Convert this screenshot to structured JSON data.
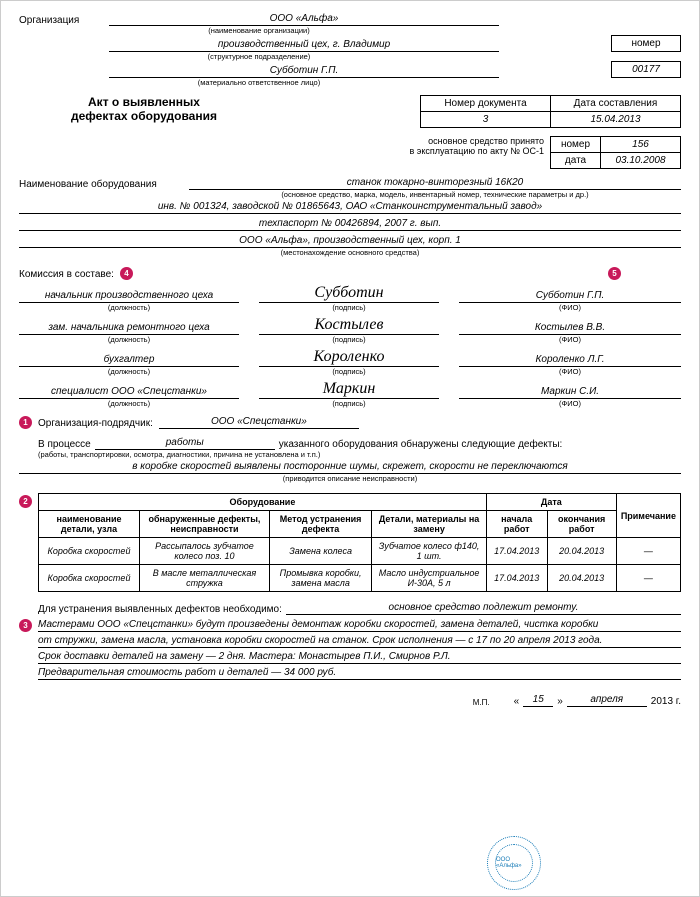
{
  "header": {
    "org_label": "Организация",
    "org_value": "ООО «Альфа»",
    "org_cap": "(наименование организации)",
    "subdiv_value": "производственный цех, г. Владимир",
    "subdiv_cap": "(структурное подразделение)",
    "resp_value": "Субботин Г.П.",
    "resp_cap": "(материально ответственное лицо)",
    "num_label": "номер",
    "num_value": "00177"
  },
  "title": {
    "line1": "Акт о выявленных",
    "line2": "дефектах оборудования"
  },
  "docbox": {
    "docnum_label": "Номер документа",
    "docnum_value": "3",
    "date_label": "Дата составления",
    "date_value": "15.04.2013"
  },
  "accept": {
    "text1": "основное средство принято",
    "text2": "в эксплуатацию по акту № ОС-1",
    "num_label": "номер",
    "num_value": "156",
    "date_label": "дата",
    "date_value": "03.10.2008"
  },
  "equip": {
    "label": "Наименование оборудования",
    "value": "станок токарно-винторезный 16К20",
    "cap": "(основное средство, марка, модель, инвентарный номер, технические параметры и др.)",
    "line2": "инв. № 001324, заводской № 01865643, ОАО «Станкоинструментальный завод»",
    "line3": "техпаспорт № 00426894, 2007 г. вып.",
    "line4": "ООО «Альфа», производственный цех, корп. 1",
    "line4_cap": "(местонахождение основного средства)"
  },
  "commission": {
    "label": "Комиссия в составе:",
    "rows": [
      {
        "pos": "начальник производственного цеха",
        "sign": "Субботин",
        "fio": "Субботин Г.П."
      },
      {
        "pos": "зам. начальника ремонтного цеха",
        "sign": "Костылев",
        "fio": "Костылев В.В."
      },
      {
        "pos": "бухгалтер",
        "sign": "Короленко",
        "fio": "Короленко Л.Г."
      },
      {
        "pos": "специалист ООО «Спецстанки»",
        "sign": "Маркин",
        "fio": "Маркин С.И."
      }
    ],
    "pos_cap": "(должность)",
    "sign_cap": "(подпись)",
    "fio_cap": "(ФИО)"
  },
  "contractor": {
    "label": "Организация-подрядчик:",
    "value": "ООО «Спецстанки»"
  },
  "process": {
    "prefix": "В процессе",
    "value": "работы",
    "suffix": "указанного  оборудования обнаружены следующие дефекты:",
    "cap": "(работы, транспортировки, осмотра, диагностики, причина не установлена и т.п.)",
    "defects_desc": "в коробке скоростей выявлены посторонние шумы, скрежет, скорости не переключаются",
    "defects_cap": "(приводится описание неисправности)"
  },
  "table": {
    "h_equip": "Оборудование",
    "h_date": "Дата",
    "h_note": "Примечание",
    "h1": "наименование детали, узла",
    "h2": "обнаруженные дефекты, неисправности",
    "h3": "Метод устранения дефекта",
    "h4": "Детали, материалы на замену",
    "h5": "начала работ",
    "h6": "окончания работ",
    "rows": [
      {
        "c1": "Коробка скоростей",
        "c2": "Рассыпалось зубчатое колесо поз. 10",
        "c3": "Замена колеса",
        "c4": "Зубчатое колесо ф140, 1 шт.",
        "c5": "17.04.2013",
        "c6": "20.04.2013",
        "c7": "—"
      },
      {
        "c1": "Коробка скоростей",
        "c2": "В масле металлическая стружка",
        "c3": "Промывка коробки, замена масла",
        "c4": "Масло индустриальное И-30А, 5 л",
        "c5": "17.04.2013",
        "c6": "20.04.2013",
        "c7": "—"
      }
    ]
  },
  "remedy": {
    "label": "Для устранения выявленных дефектов необходимо:",
    "value": "основное средство подлежит ремонту.",
    "line1": "Мастерами ООО «Спецстанки» будут произведены демонтаж коробки скоростей, замена деталей, чистка коробки",
    "line2": "от стружки, замена масла, установка коробки скоростей на станок. Срок исполнения — с 17 по 20 апреля 2013 года.",
    "line3": "Срок доставки деталей на замену — 2 дня. Мастера: Монастырев П.И., Смирнов Р.Л.",
    "line4": "Предварительная стоимость работ и деталей — 34 000 руб."
  },
  "footer": {
    "mp": "М.П.",
    "q1": "«",
    "day": "15",
    "q2": "»",
    "month": "апреля",
    "year": "2013 г.",
    "stamp_text": "ООО «Альфа»"
  },
  "markers": {
    "m1": "1",
    "m2": "2",
    "m3": "3",
    "m4": "4",
    "m5": "5"
  }
}
